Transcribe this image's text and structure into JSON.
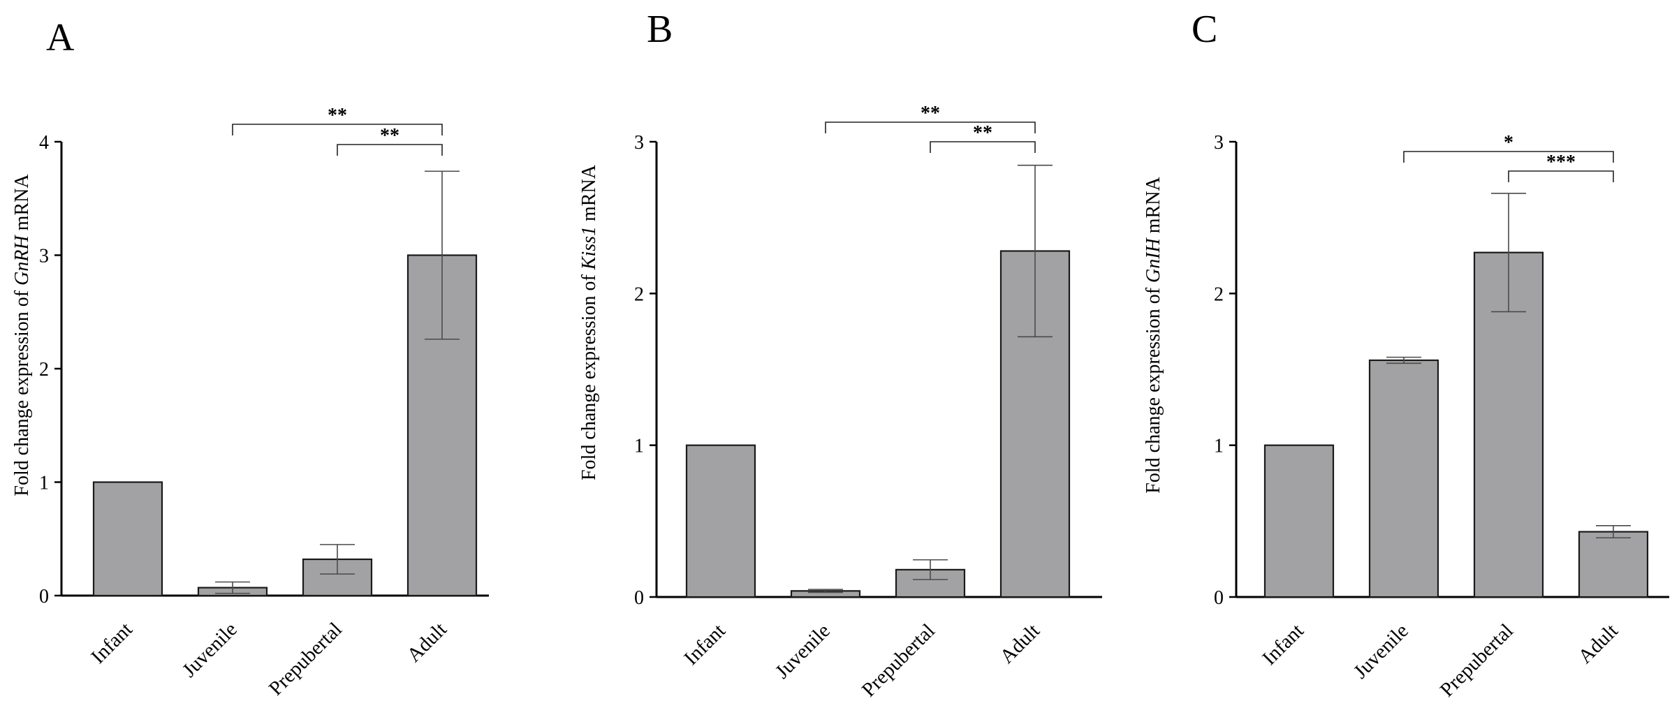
{
  "chart_data": [
    {
      "type": "bar",
      "panel": "A",
      "categories": [
        "Infant",
        "Juvenile",
        "Prepubertal",
        "Adult"
      ],
      "values": [
        1.0,
        0.07,
        0.32,
        3.0
      ],
      "error": [
        0,
        0.05,
        0.13,
        0.74
      ],
      "ylabel_prefix": "Fold change expression of ",
      "ylabel_gene": "GnRH",
      "ylabel_suffix": " mRNA",
      "ylim": [
        0,
        4
      ],
      "yticks": [
        0,
        1,
        2,
        3,
        4
      ],
      "ytick_labels": [
        "0",
        "1",
        "2",
        "3",
        "4"
      ],
      "significance": [
        {
          "from": "Juvenile",
          "to": "Adult",
          "label": "**"
        },
        {
          "from": "Prepubertal",
          "to": "Adult",
          "label": "**"
        }
      ]
    },
    {
      "type": "bar",
      "panel": "B",
      "categories": [
        "Infant",
        "Juvenile",
        "Prepubertal",
        "Adult"
      ],
      "values": [
        1.0,
        0.04,
        0.18,
        2.28
      ],
      "error": [
        0,
        0.01,
        0.065,
        0.565
      ],
      "ylabel_prefix": "Fold change expression of ",
      "ylabel_gene": "Kiss1",
      "ylabel_suffix": " mRNA",
      "ylim": [
        0,
        3
      ],
      "yticks": [
        0,
        1,
        2,
        3
      ],
      "ytick_labels": [
        "0",
        "1",
        "2",
        "3"
      ],
      "significance": [
        {
          "from": "Juvenile",
          "to": "Adult",
          "label": "**"
        },
        {
          "from": "Prepubertal",
          "to": "Adult",
          "label": "**"
        }
      ]
    },
    {
      "type": "bar",
      "panel": "C",
      "categories": [
        "Infant",
        "Juvenile",
        "Prepubertal",
        "Adult"
      ],
      "values": [
        1.0,
        1.56,
        2.27,
        0.43
      ],
      "error": [
        0,
        0.02,
        0.39,
        0.04
      ],
      "ylabel_prefix": "Fold change expression of ",
      "ylabel_gene": "GnIH",
      "ylabel_suffix": " mRNA",
      "ylim": [
        0,
        3
      ],
      "yticks": [
        0,
        1,
        2,
        3
      ],
      "ytick_labels": [
        "0",
        "1",
        "2",
        "3"
      ],
      "significance": [
        {
          "from": "Juvenile",
          "to": "Adult",
          "label": "*"
        },
        {
          "from": "Prepubertal",
          "to": "Adult",
          "label": "***"
        }
      ]
    }
  ]
}
